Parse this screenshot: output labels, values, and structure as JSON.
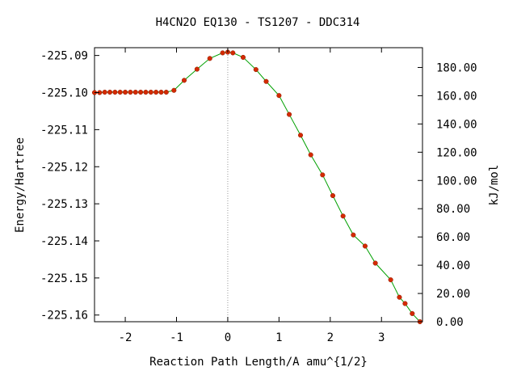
{
  "chart_data": {
    "type": "line",
    "title": "H4CN2O   EQ130 - TS1207 - DDC314",
    "xlabel": "Reaction Path Length/A amu^{1/2}",
    "ylabel": "Energy/Hartree",
    "y2label": "kJ/mol",
    "xlim": [
      -2.6,
      3.8
    ],
    "ylim": [
      -225.1618,
      -225.0879
    ],
    "y2lim": [
      0.0,
      194.0
    ],
    "x_ticks": [
      -2,
      -1,
      0,
      1,
      2,
      3
    ],
    "x_tick_labels": [
      "-2",
      "-1",
      "0",
      "1",
      "2",
      "3"
    ],
    "y_ticks": [
      -225.16,
      -225.15,
      -225.14,
      -225.13,
      -225.12,
      -225.11,
      -225.1,
      -225.09
    ],
    "y_tick_labels": [
      "-225.16",
      "-225.15",
      "-225.14",
      "-225.13",
      "-225.12",
      "-225.11",
      "-225.10",
      "-225.09"
    ],
    "y2_ticks": [
      0,
      20,
      40,
      60,
      80,
      100,
      120,
      140,
      160,
      180
    ],
    "y2_tick_labels": [
      "0.00",
      "20.00",
      "40.00",
      "60.00",
      "80.00",
      "100.00",
      "120.00",
      "140.00",
      "160.00",
      "180.00"
    ],
    "ts_x": 0,
    "series": [
      {
        "x": [
          -2.6,
          -2.5,
          -2.4,
          -2.3,
          -2.2,
          -2.1,
          -2.0,
          -1.9,
          -1.8,
          -1.7,
          -1.6,
          -1.5,
          -1.4,
          -1.3,
          -1.2,
          -1.05,
          -0.85,
          -0.6,
          -0.35,
          -0.1,
          0.0,
          0.1,
          0.3,
          0.55,
          0.75,
          1.0,
          1.2,
          1.42,
          1.62,
          1.85,
          2.05,
          2.25,
          2.45,
          2.68,
          2.88,
          3.18,
          3.35,
          3.46,
          3.6,
          3.75
        ],
        "y": [
          -225.1,
          -225.1,
          -225.0999,
          -225.0999,
          -225.0999,
          -225.0999,
          -225.0999,
          -225.0999,
          -225.0999,
          -225.0999,
          -225.0999,
          -225.0999,
          -225.0999,
          -225.0999,
          -225.0999,
          -225.0994,
          -225.0967,
          -225.0937,
          -225.0908,
          -225.0893,
          -225.0891,
          -225.0893,
          -225.0905,
          -225.0938,
          -225.097,
          -225.1008,
          -225.1059,
          -225.1115,
          -225.1168,
          -225.1222,
          -225.1278,
          -225.1333,
          -225.1384,
          -225.1414,
          -225.146,
          -225.1505,
          -225.1552,
          -225.1569,
          -225.1596,
          -225.1618
        ]
      }
    ]
  },
  "colors": {
    "line": "#00a000",
    "marker": "#d42a00",
    "ts_line": "#999999",
    "frame": "#000000"
  }
}
